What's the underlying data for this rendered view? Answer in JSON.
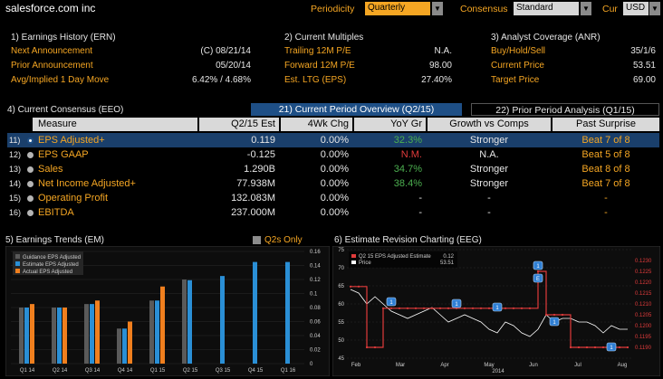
{
  "topbar": {
    "company": "salesforce.com inc",
    "periodicity_label": "Periodicity",
    "periodicity_value": "Quarterly",
    "consensus_label": "Consensus",
    "consensus_value": "Standard",
    "cur_label": "Cur",
    "cur_value": "USD"
  },
  "earnings_history": {
    "title": "1) Earnings History (ERN)",
    "rows": [
      {
        "label": "Next Announcement",
        "value": "(C)  08/21/14"
      },
      {
        "label": "Prior Announcement",
        "value": "05/20/14"
      },
      {
        "label": "Avg/Implied 1 Day Move",
        "value": "6.42% / 4.68%"
      }
    ]
  },
  "current_multiples": {
    "title": "2) Current Multiples",
    "rows": [
      {
        "label": "Trailing 12M P/E",
        "value": "N.A."
      },
      {
        "label": "Forward 12M P/E",
        "value": "98.00"
      },
      {
        "label": "Est. LTG (EPS)",
        "value": "27.40%"
      }
    ]
  },
  "analyst_coverage": {
    "title": "3) Analyst Coverage (ANR)",
    "rows": [
      {
        "label": "Buy/Hold/Sell",
        "value": "35/1/6"
      },
      {
        "label": "Current Price",
        "value": "53.51"
      },
      {
        "label": "Target Price",
        "value": "69.00"
      }
    ]
  },
  "consensus": {
    "title": "4) Current Consensus (EEO)",
    "tab_active": "21) Current Period Overview (Q2/15)",
    "tab_other": "22) Prior Period Analysis (Q1/15)",
    "headers": [
      "Measure",
      "Q2/15 Est",
      "4Wk Chg",
      "YoY Gr",
      "Growth vs Comps",
      "Past Surprise"
    ],
    "rows": [
      {
        "num": "11)",
        "measure": "EPS Adjusted+",
        "est": "0.119",
        "chg": "0.00%",
        "yoy": "32.3%",
        "yoy_color": "#4caf50",
        "comps": "Stronger",
        "surprise": "Beat 7 of 8",
        "selected": true
      },
      {
        "num": "12)",
        "measure": "EPS GAAP",
        "est": "-0.125",
        "chg": "0.00%",
        "yoy": "N.M.",
        "yoy_color": "#e03b3b",
        "comps": "N.A.",
        "surprise": "Beat 5 of 8",
        "selected": false
      },
      {
        "num": "13)",
        "measure": "Sales",
        "est": "1.290B",
        "chg": "0.00%",
        "yoy": "34.7%",
        "yoy_color": "#4caf50",
        "comps": "Stronger",
        "surprise": "Beat 8 of 8",
        "selected": false
      },
      {
        "num": "14)",
        "measure": "Net Income Adjusted+",
        "est": "77.938M",
        "chg": "0.00%",
        "yoy": "38.4%",
        "yoy_color": "#4caf50",
        "comps": "Stronger",
        "surprise": "Beat 7 of 8",
        "selected": false
      },
      {
        "num": "15)",
        "measure": "Operating Profit",
        "est": "132.083M",
        "chg": "0.00%",
        "yoy": "-",
        "yoy_color": "#e6e6e6",
        "comps": "-",
        "surprise": "-",
        "selected": false
      },
      {
        "num": "16)",
        "measure": "EBITDA",
        "est": "237.000M",
        "chg": "0.00%",
        "yoy": "-",
        "yoy_color": "#e6e6e6",
        "comps": "-",
        "surprise": "-",
        "selected": false
      }
    ]
  },
  "trends": {
    "title": "5) Earnings Trends (EM)",
    "q2s_only": "Q2s Only"
  },
  "revision": {
    "title": "6) Estimate Revision Charting (EEG)"
  },
  "chart_data": [
    {
      "type": "bar",
      "categories": [
        "Q1 14",
        "Q2 14",
        "Q3 14",
        "Q4 14",
        "Q1 15",
        "Q2 15",
        "Q3 15",
        "Q4 15",
        "Q1 16"
      ],
      "series": [
        {
          "name": "Guidance EPS Adjusted",
          "color": "#5a5a5a",
          "values": [
            0.08,
            0.08,
            0.085,
            0.05,
            0.09,
            0.12,
            null,
            null,
            null
          ]
        },
        {
          "name": "Estimate EPS Adjusted",
          "color": "#2a8fd6",
          "values": [
            0.08,
            0.08,
            0.085,
            0.05,
            0.09,
            0.119,
            0.125,
            0.145,
            0.145
          ]
        },
        {
          "name": "Actual EPS Adjusted",
          "color": "#f07f1e",
          "values": [
            0.085,
            0.08,
            0.09,
            0.06,
            0.11,
            null,
            null,
            null,
            null
          ]
        }
      ],
      "ylim": [
        0,
        0.16
      ],
      "yticks": [
        "0",
        "0.02",
        "0.04",
        "0.06",
        "0.08",
        "0.1",
        "0.12",
        "0.14",
        "0.16"
      ]
    },
    {
      "type": "line",
      "x_labels": [
        "Feb",
        "Mar",
        "Apr",
        "May",
        "Jun",
        "Jul",
        "Aug"
      ],
      "year_label": "2014",
      "legend": [
        {
          "name": "Q2 15 EPS Adjusted Estimate",
          "value": "0.12",
          "color": "#e03b3b"
        },
        {
          "name": "Price",
          "value": "53.51",
          "color": "#ffffff"
        }
      ],
      "left_ticks": [
        "45",
        "50",
        "55",
        "60",
        "65",
        "70",
        "75"
      ],
      "right_ticks": [
        "0.1190",
        "0.1195",
        "0.1200",
        "0.1205",
        "0.1210",
        "0.1215",
        "0.1220",
        "0.1225",
        "0.1230"
      ],
      "left_lim": [
        45,
        75
      ],
      "right_lim": [
        0.1185,
        0.1235
      ],
      "price": [
        64,
        63,
        60,
        62,
        60,
        58,
        57,
        56,
        57,
        58,
        59,
        57,
        55,
        56,
        57,
        56,
        55,
        53,
        52,
        55,
        54,
        52,
        51,
        53,
        57,
        55,
        56,
        56,
        55,
        55,
        54,
        52,
        54,
        53,
        53
      ],
      "estimate": [
        0.1218,
        0.1218,
        0.119,
        0.119,
        0.1208,
        0.1208,
        0.1208,
        0.1208,
        0.1208,
        0.1208,
        0.1208,
        0.1208,
        0.1208,
        0.1208,
        0.1208,
        0.1208,
        0.1208,
        0.1208,
        0.1208,
        0.1208,
        0.1208,
        0.1208,
        0.1208,
        0.1225,
        0.1205,
        0.1205,
        0.1205,
        0.119,
        0.119,
        0.119,
        0.119,
        0.119,
        0.119,
        0.119,
        0.119
      ],
      "markers": [
        "1",
        "1",
        "1",
        "E",
        "1",
        "1",
        "1"
      ]
    }
  ]
}
